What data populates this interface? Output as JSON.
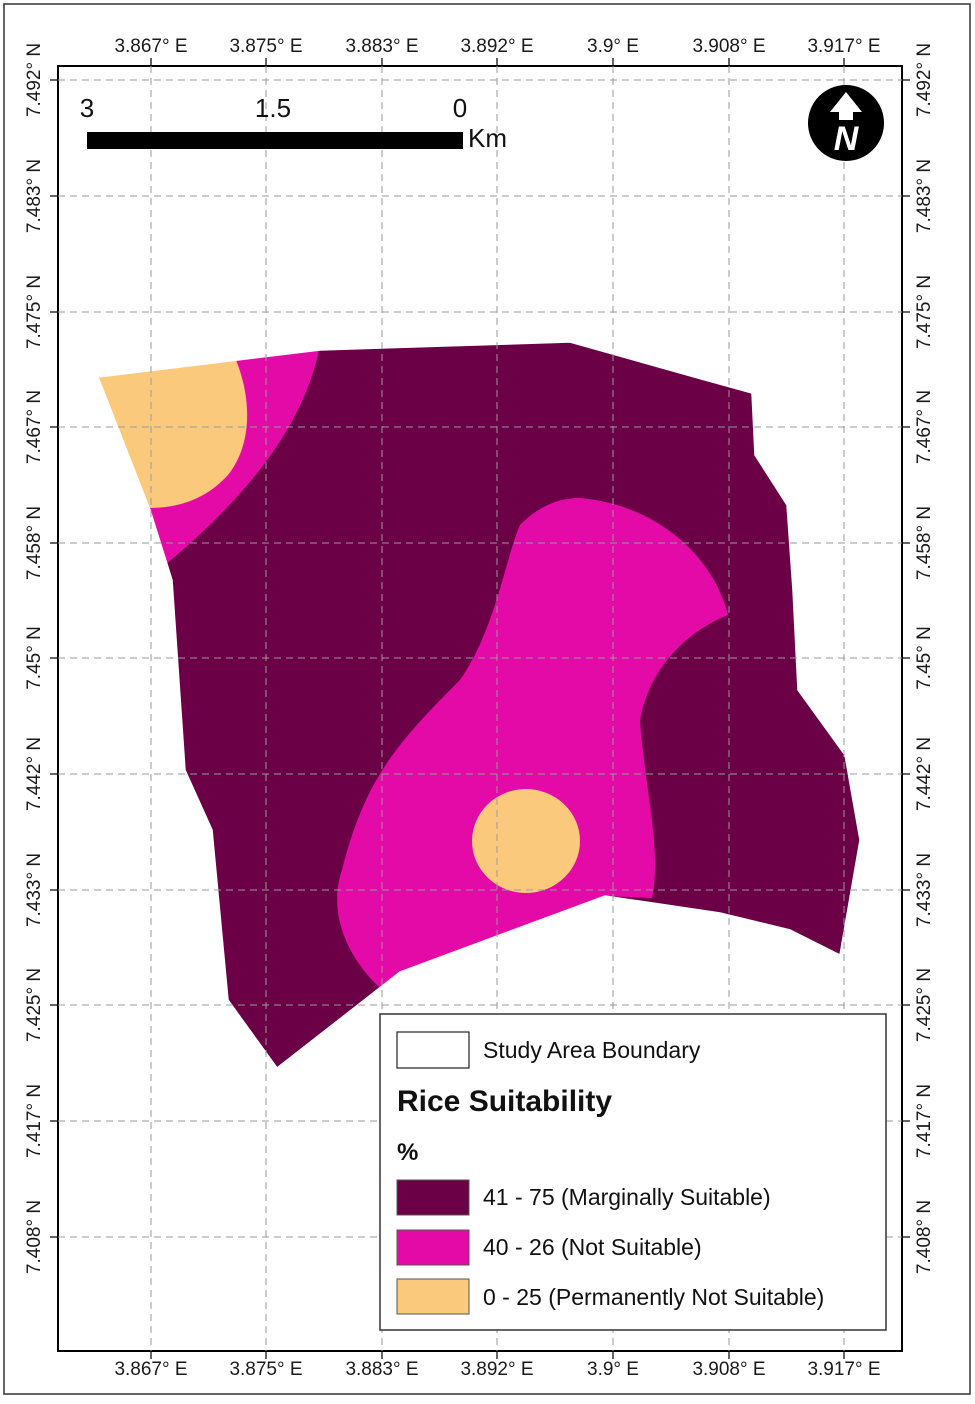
{
  "map": {
    "longitude_labels": [
      "3.867° E",
      "3.875° E",
      "3.883° E",
      "3.892° E",
      "3.9° E",
      "3.908° E",
      "3.917° E"
    ],
    "latitude_labels": [
      "7.492° N",
      "7.483° N",
      "7.475° N",
      "7.467° N",
      "7.458° N",
      "7.45° N",
      "7.442° N",
      "7.433° N",
      "7.425° N",
      "7.417° N",
      "7.408° N"
    ],
    "scale_bar": {
      "labels": [
        "3",
        "1.5",
        "0"
      ],
      "unit": "Km"
    },
    "north_arrow": {
      "letter": "N",
      "icon": "north-arrow-icon"
    },
    "legend": {
      "boundary_label": "Study Area Boundary",
      "title": "Rice Suitability",
      "unit": "%",
      "classes": [
        {
          "label": "41 - 75 (Marginally Suitable)",
          "color": "#6b0046"
        },
        {
          "label": "40 - 26 (Not Suitable)",
          "color": "#e40aa7"
        },
        {
          "label": "0 - 25 (Permanently Not Suitable)",
          "color": "#fbc97b"
        }
      ]
    }
  }
}
